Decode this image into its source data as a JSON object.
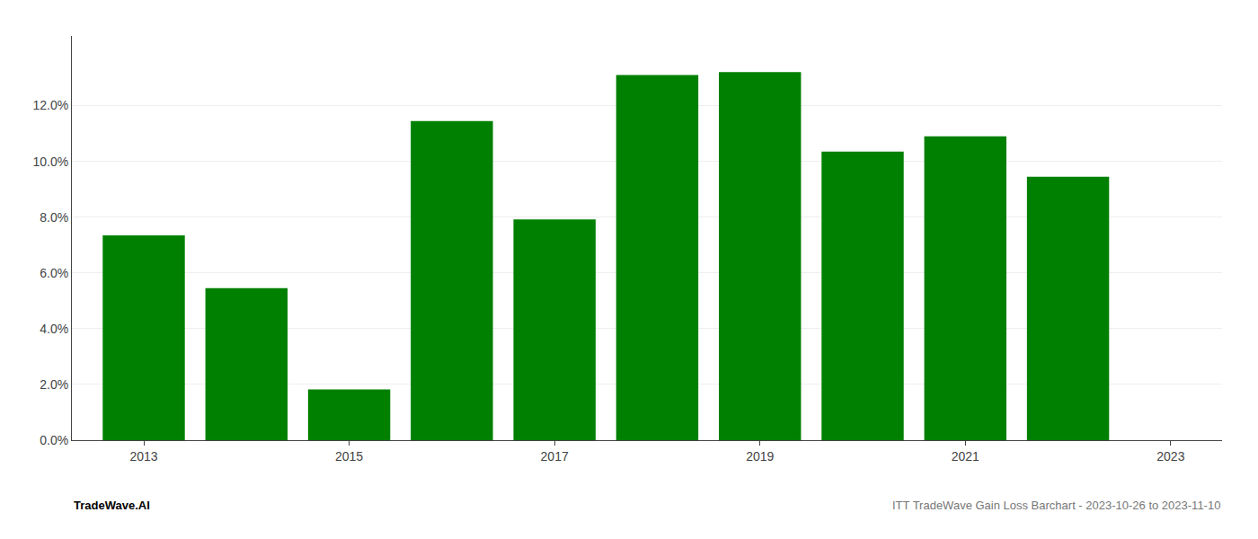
{
  "chart_data": {
    "type": "bar",
    "x": [
      2013,
      2014,
      2015,
      2016,
      2017,
      2018,
      2019,
      2020,
      2021,
      2022
    ],
    "values": [
      0.0735,
      0.0545,
      0.0182,
      0.1145,
      0.0792,
      0.131,
      0.132,
      0.1035,
      0.109,
      0.0945
    ],
    "color": "#008000",
    "xlim": [
      2012.3,
      2023.5
    ],
    "xticks": [
      2013,
      2015,
      2017,
      2019,
      2021,
      2023
    ],
    "ylim": [
      0,
      0.145
    ],
    "yticks": [
      {
        "value": 0.0,
        "label": "0.0%"
      },
      {
        "value": 0.02,
        "label": "2.0%"
      },
      {
        "value": 0.04,
        "label": "4.0%"
      },
      {
        "value": 0.06,
        "label": "6.0%"
      },
      {
        "value": 0.08,
        "label": "8.0%"
      },
      {
        "value": 0.1,
        "label": "10.0%"
      },
      {
        "value": 0.12,
        "label": "12.0%"
      }
    ],
    "grid": true,
    "annotations": [
      "TradeWave.AI",
      "ITT TradeWave Gain Loss Barchart - 2023-10-26 to 2023-11-10"
    ]
  }
}
